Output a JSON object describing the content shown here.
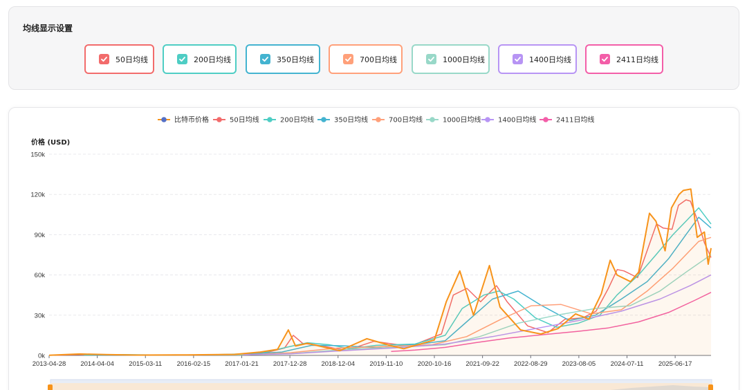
{
  "settings": {
    "title": "均线显示设置",
    "toggles": [
      {
        "label": "50日均线",
        "color": "#f26b6b",
        "checked": true
      },
      {
        "label": "200日均线",
        "color": "#4ecdc4",
        "checked": true
      },
      {
        "label": "350日均线",
        "color": "#43b3d0",
        "checked": true
      },
      {
        "label": "700日均线",
        "color": "#ffa07a",
        "checked": true
      },
      {
        "label": "1000日均线",
        "color": "#98d8c8",
        "checked": true
      },
      {
        "label": "1400日均线",
        "color": "#b794f4",
        "checked": true
      },
      {
        "label": "2411日均线",
        "color": "#f35ea8",
        "checked": true
      }
    ]
  },
  "chart_data": {
    "type": "line",
    "ylabel": "价格 (USD)",
    "ylim": [
      0,
      150000
    ],
    "yticks": [
      0,
      30000,
      60000,
      90000,
      120000,
      150000
    ],
    "ytick_labels": [
      "0k",
      "30k",
      "60k",
      "90k",
      "120k",
      "150k"
    ],
    "xlim": [
      "2013-04-28",
      "2026-02-26"
    ],
    "xtick_labels": [
      "2013-04-28",
      "2014-04-04",
      "2015-03-11",
      "2016-02-15",
      "2017-01-21",
      "2017-12-28",
      "2018-12-04",
      "2019-11-10",
      "2020-10-16",
      "2021-09-22",
      "2022-08-29",
      "2023-08-05",
      "2024-07-11",
      "2025-06-17"
    ],
    "grid": true,
    "legend_position": "top-center",
    "series": [
      {
        "name": "比特币价格",
        "color": "#f7931a",
        "marker_color": "#5470c6",
        "area": true,
        "x": [
          "2013-04-28",
          "2013-12-01",
          "2014-06-01",
          "2015-01-15",
          "2016-01-01",
          "2016-12-01",
          "2017-06-01",
          "2017-10-01",
          "2017-12-17",
          "2018-02-06",
          "2018-05-01",
          "2018-12-15",
          "2019-06-26",
          "2019-12-15",
          "2020-03-13",
          "2020-10-16",
          "2021-01-08",
          "2021-04-14",
          "2021-07-20",
          "2021-11-10",
          "2022-01-24",
          "2022-06-18",
          "2022-11-09",
          "2023-03-10",
          "2023-07-13",
          "2023-10-16",
          "2024-01-11",
          "2024-03-14",
          "2024-05-01",
          "2024-08-05",
          "2024-10-01",
          "2024-12-17",
          "2025-02-01",
          "2025-04-07",
          "2025-05-22",
          "2025-07-14",
          "2025-08-14",
          "2025-10-06",
          "2025-11-20",
          "2026-01-10",
          "2026-02-06",
          "2026-02-26"
        ],
        "y": [
          135,
          1100,
          630,
          250,
          430,
          750,
          2500,
          4500,
          19000,
          7000,
          9000,
          3500,
          12500,
          7200,
          5000,
          11500,
          40000,
          63000,
          30000,
          67000,
          36000,
          19000,
          16000,
          20000,
          31000,
          27000,
          46000,
          71000,
          60000,
          55000,
          62000,
          106000,
          100000,
          78000,
          110000,
          120000,
          123000,
          124000,
          88000,
          92000,
          68000,
          80000
        ]
      },
      {
        "name": "50日均线",
        "color": "#f26b6b",
        "x": [
          "2013-06-17",
          "2014-01-20",
          "2014-07-21",
          "2015-03-06",
          "2016-02-20",
          "2017-01-20",
          "2017-07-21",
          "2017-11-20",
          "2018-01-21",
          "2018-03-28",
          "2018-06-20",
          "2019-02-03",
          "2019-08-15",
          "2020-02-03",
          "2020-05-02",
          "2020-12-05",
          "2021-02-27",
          "2021-06-03",
          "2021-09-08",
          "2021-12-30",
          "2022-03-15",
          "2022-08-07",
          "2022-12-29",
          "2023-04-29",
          "2023-09-01",
          "2023-12-05",
          "2024-03-01",
          "2024-05-03",
          "2024-06-20",
          "2024-09-24",
          "2024-11-20",
          "2025-02-05",
          "2025-03-23",
          "2025-05-26",
          "2025-07-11",
          "2025-09-02",
          "2025-10-03",
          "2025-11-25",
          "2026-01-10",
          "2026-02-26"
        ],
        "y": [
          120,
          800,
          550,
          270,
          400,
          800,
          2300,
          5500,
          15000,
          9000,
          8000,
          3800,
          10500,
          8000,
          7000,
          16000,
          45000,
          50000,
          40000,
          52000,
          40000,
          22000,
          17000,
          27000,
          28000,
          33000,
          50000,
          64000,
          63000,
          58000,
          75000,
          98000,
          95000,
          94000,
          112000,
          116000,
          115000,
          100000,
          84000,
          73000
        ]
      },
      {
        "name": "200日均线",
        "color": "#4ecdc4",
        "x": [
          "2014-01-01",
          "2014-10-01",
          "2015-06-01",
          "2016-06-01",
          "2017-06-01",
          "2017-12-01",
          "2018-05-01",
          "2018-10-01",
          "2019-03-01",
          "2019-09-01",
          "2020-06-01",
          "2021-01-01",
          "2021-05-01",
          "2021-10-01",
          "2022-01-15",
          "2022-05-01",
          "2022-10-01",
          "2023-03-01",
          "2023-08-01",
          "2024-01-01",
          "2024-05-01",
          "2024-10-01",
          "2025-02-01",
          "2025-06-01",
          "2025-09-01",
          "2025-12-01",
          "2026-02-26"
        ],
        "y": [
          300,
          600,
          320,
          450,
          1500,
          6000,
          9500,
          8000,
          5000,
          7500,
          8500,
          15000,
          35000,
          45000,
          48000,
          42000,
          28000,
          21000,
          24000,
          30000,
          45000,
          60000,
          75000,
          90000,
          100000,
          110000,
          98000
        ]
      },
      {
        "name": "350日均线",
        "color": "#43b3d0",
        "x": [
          "2014-03-01",
          "2015-01-01",
          "2016-01-01",
          "2017-01-01",
          "2017-11-01",
          "2018-06-01",
          "2019-01-01",
          "2019-08-01",
          "2020-06-01",
          "2021-01-01",
          "2021-06-01",
          "2021-12-01",
          "2022-06-01",
          "2022-11-01",
          "2023-06-01",
          "2023-12-01",
          "2024-06-01",
          "2024-12-01",
          "2025-05-01",
          "2025-09-01",
          "2025-12-01",
          "2026-02-26"
        ],
        "y": [
          250,
          420,
          330,
          700,
          2500,
          7500,
          7200,
          6000,
          8000,
          11000,
          25000,
          42000,
          48000,
          38000,
          26000,
          30000,
          42000,
          55000,
          72000,
          90000,
          103000,
          95000
        ]
      },
      {
        "name": "700日均线",
        "color": "#ffa07a",
        "x": [
          "2015-03-01",
          "2016-03-01",
          "2017-03-01",
          "2018-01-01",
          "2018-12-01",
          "2019-10-01",
          "2020-10-01",
          "2021-06-01",
          "2022-02-01",
          "2022-09-01",
          "2023-04-01",
          "2023-11-01",
          "2024-06-01",
          "2024-12-01",
          "2025-06-01",
          "2025-12-01",
          "2026-02-26"
        ],
        "y": [
          400,
          330,
          500,
          2000,
          5500,
          6500,
          8000,
          14000,
          27000,
          37000,
          38000,
          31000,
          34000,
          48000,
          65000,
          85000,
          88000
        ]
      },
      {
        "name": "1000日均线",
        "color": "#98d8c8",
        "x": [
          "2016-01-01",
          "2017-01-01",
          "2018-01-01",
          "2019-01-01",
          "2020-01-01",
          "2021-01-01",
          "2021-09-01",
          "2022-06-01",
          "2023-03-01",
          "2023-12-01",
          "2024-08-01",
          "2025-03-01",
          "2025-09-01",
          "2026-02-26"
        ],
        "y": [
          350,
          450,
          1300,
          4300,
          6000,
          8000,
          14000,
          24000,
          30000,
          35000,
          37000,
          48000,
          62000,
          75000
        ]
      },
      {
        "name": "1400日均线",
        "color": "#b794f4",
        "x": [
          "2017-02-01",
          "2018-01-01",
          "2019-01-01",
          "2020-01-01",
          "2021-01-01",
          "2021-12-01",
          "2022-10-01",
          "2023-08-01",
          "2024-06-01",
          "2025-03-01",
          "2025-10-01",
          "2026-02-26"
        ],
        "y": [
          500,
          1200,
          3500,
          5500,
          8500,
          14000,
          20000,
          26000,
          33000,
          42000,
          52000,
          60000
        ]
      },
      {
        "name": "2411日均线",
        "color": "#f35ea8",
        "x": [
          "2019-12-15",
          "2020-06-01",
          "2021-01-01",
          "2021-08-01",
          "2022-04-01",
          "2022-12-01",
          "2023-08-01",
          "2024-03-01",
          "2024-10-01",
          "2025-05-01",
          "2025-11-01",
          "2026-02-26"
        ],
        "y": [
          3000,
          4000,
          6000,
          9500,
          13000,
          15500,
          18000,
          20500,
          25000,
          32000,
          41000,
          47000
        ]
      }
    ]
  }
}
